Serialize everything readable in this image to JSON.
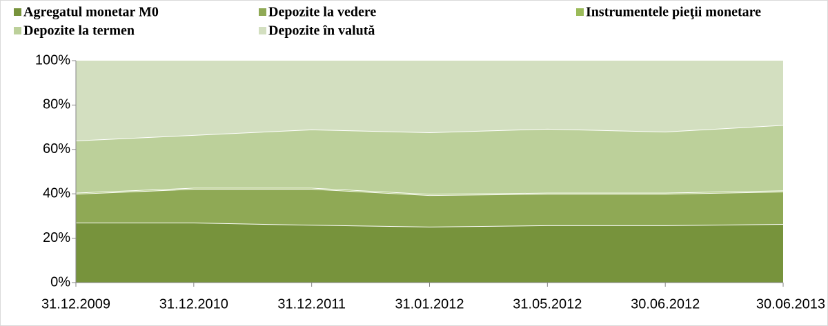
{
  "chart_data": {
    "type": "stacked_area",
    "categories": [
      "31.12.2009",
      "31.12.2010",
      "31.12.2011",
      "31.01.2012",
      "31.05.2012",
      "30.06.2012",
      "30.06.2013"
    ],
    "series": [
      {
        "name": "Agregatul monetar M0",
        "color": "#77933c",
        "values": [
          27.0,
          27.0,
          26.0,
          25.2,
          25.8,
          25.8,
          26.4
        ]
      },
      {
        "name": "Depozite la vedere",
        "color": "#8fa955",
        "values": [
          13.0,
          15.2,
          16.2,
          14.2,
          14.2,
          14.2,
          14.6
        ]
      },
      {
        "name": "Instrumentele pieţii monetare",
        "color": "#9bbb59",
        "values": [
          0.5,
          0.5,
          0.5,
          0.5,
          0.5,
          0.5,
          0.5
        ]
      },
      {
        "name": "Depozite la termen",
        "color": "#bcd09a",
        "values": [
          23.5,
          23.8,
          26.3,
          27.8,
          28.8,
          27.5,
          29.5
        ]
      },
      {
        "name": "Depozite în valută",
        "color": "#d3dfc0",
        "values": [
          36.0,
          33.5,
          31.0,
          32.3,
          30.7,
          32.0,
          29.0
        ]
      }
    ],
    "ylim": [
      0,
      100
    ],
    "yticks": [
      {
        "value": 0,
        "label": "0%"
      },
      {
        "value": 20,
        "label": "20%"
      },
      {
        "value": 40,
        "label": "40%"
      },
      {
        "value": 60,
        "label": "60%"
      },
      {
        "value": 80,
        "label": "80%"
      },
      {
        "value": 100,
        "label": "100%"
      }
    ],
    "legend": "top"
  }
}
